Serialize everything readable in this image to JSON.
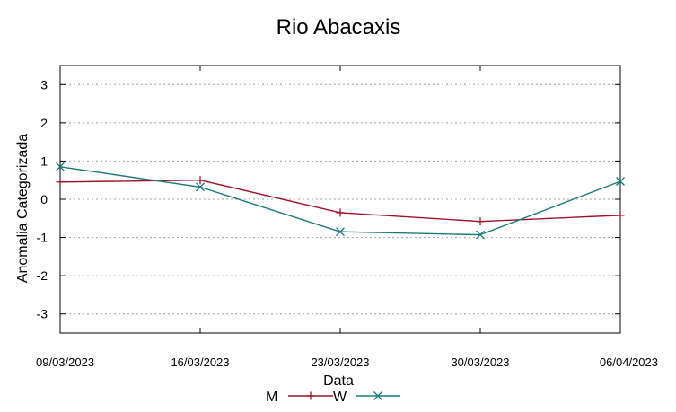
{
  "chart_data": {
    "type": "line",
    "title": "Rio Abacaxis",
    "xlabel": "Data",
    "ylabel": "Anomalia Categorizada",
    "categories": [
      "09/03/2023",
      "16/03/2023",
      "23/03/2023",
      "30/03/2023",
      "06/04/2023"
    ],
    "ylim": [
      -3.5,
      3.5
    ],
    "yticks": [
      3,
      2,
      1,
      0,
      -1,
      -2,
      -3
    ],
    "ytick_labels": [
      "3",
      "2",
      "1",
      "0",
      "-1",
      "-2",
      "-3"
    ],
    "grid": true,
    "legend_position": "bottom",
    "series": [
      {
        "name": "M",
        "color": "#a0102a",
        "marker": "plus",
        "values": [
          0.45,
          0.5,
          -0.35,
          -0.58,
          -0.42
        ]
      },
      {
        "name": "W",
        "color": "#1a7a7a",
        "marker": "cross",
        "values": [
          0.85,
          0.32,
          -0.85,
          -0.93,
          0.47
        ]
      }
    ]
  }
}
